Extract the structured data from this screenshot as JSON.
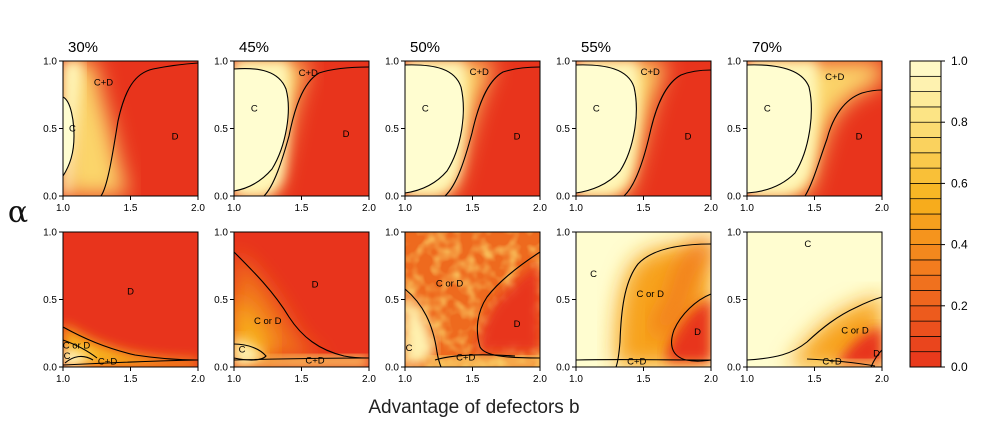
{
  "chart_data": {
    "type": "heatmap",
    "xlabel": "Advantage of defectors b",
    "ylabel": "α",
    "x_range": [
      1.0,
      2.0
    ],
    "y_range": [
      0.0,
      1.0
    ],
    "x_ticks": [
      "1.0",
      "1.5",
      "2.0"
    ],
    "y_ticks": [
      "0.0",
      "0.5",
      "1.0"
    ],
    "column_titles": [
      "30%",
      "45%",
      "50%",
      "55%",
      "70%"
    ],
    "colorbar": {
      "ticks": [
        "0.0",
        "0.2",
        "0.4",
        "0.6",
        "0.8",
        "1.0"
      ],
      "low_color": "#e8341c",
      "mid_color": "#f8b21c",
      "high_color": "#fffdd0",
      "levels": 20
    },
    "panels": [
      {
        "row": 1,
        "col": 1,
        "labels": [
          {
            "text": "C",
            "b": 1.07,
            "a": 0.5
          },
          {
            "text": "C+D",
            "b": 1.3,
            "a": 0.84
          },
          {
            "text": "D",
            "b": 1.83,
            "a": 0.44
          }
        ]
      },
      {
        "row": 1,
        "col": 2,
        "labels": [
          {
            "text": "C",
            "b": 1.15,
            "a": 0.65
          },
          {
            "text": "C+D",
            "b": 1.55,
            "a": 0.91
          },
          {
            "text": "D",
            "b": 1.83,
            "a": 0.46
          }
        ]
      },
      {
        "row": 1,
        "col": 3,
        "labels": [
          {
            "text": "C",
            "b": 1.15,
            "a": 0.65
          },
          {
            "text": "C+D",
            "b": 1.55,
            "a": 0.92
          },
          {
            "text": "D",
            "b": 1.83,
            "a": 0.44
          }
        ]
      },
      {
        "row": 1,
        "col": 4,
        "labels": [
          {
            "text": "C",
            "b": 1.15,
            "a": 0.65
          },
          {
            "text": "C+D",
            "b": 1.55,
            "a": 0.92
          },
          {
            "text": "D",
            "b": 1.83,
            "a": 0.44
          }
        ]
      },
      {
        "row": 1,
        "col": 5,
        "labels": [
          {
            "text": "C",
            "b": 1.15,
            "a": 0.65
          },
          {
            "text": "C+D",
            "b": 1.65,
            "a": 0.88
          },
          {
            "text": "D",
            "b": 1.83,
            "a": 0.44
          }
        ]
      },
      {
        "row": 2,
        "col": 1,
        "labels": [
          {
            "text": "D",
            "b": 1.5,
            "a": 0.56
          },
          {
            "text": "C or D",
            "b": 1.1,
            "a": 0.16
          },
          {
            "text": "C",
            "b": 1.03,
            "a": 0.08
          },
          {
            "text": "C+D",
            "b": 1.33,
            "a": 0.04
          }
        ]
      },
      {
        "row": 2,
        "col": 2,
        "labels": [
          {
            "text": "D",
            "b": 1.6,
            "a": 0.61
          },
          {
            "text": "C or D",
            "b": 1.25,
            "a": 0.34
          },
          {
            "text": "C",
            "b": 1.06,
            "a": 0.13
          },
          {
            "text": "C+D",
            "b": 1.6,
            "a": 0.05
          }
        ]
      },
      {
        "row": 2,
        "col": 3,
        "labels": [
          {
            "text": "C or D",
            "b": 1.33,
            "a": 0.62
          },
          {
            "text": "D",
            "b": 1.83,
            "a": 0.32
          },
          {
            "text": "C",
            "b": 1.03,
            "a": 0.14
          },
          {
            "text": "C+D",
            "b": 1.45,
            "a": 0.07
          }
        ]
      },
      {
        "row": 2,
        "col": 4,
        "labels": [
          {
            "text": "C",
            "b": 1.13,
            "a": 0.69
          },
          {
            "text": "C or D",
            "b": 1.55,
            "a": 0.54
          },
          {
            "text": "D",
            "b": 1.9,
            "a": 0.26
          },
          {
            "text": "C+D",
            "b": 1.45,
            "a": 0.04
          }
        ]
      },
      {
        "row": 2,
        "col": 5,
        "labels": [
          {
            "text": "C",
            "b": 1.45,
            "a": 0.91
          },
          {
            "text": "C or D",
            "b": 1.8,
            "a": 0.27
          },
          {
            "text": "C+D",
            "b": 1.63,
            "a": 0.04
          },
          {
            "text": "D",
            "b": 1.96,
            "a": 0.1
          }
        ]
      }
    ]
  }
}
